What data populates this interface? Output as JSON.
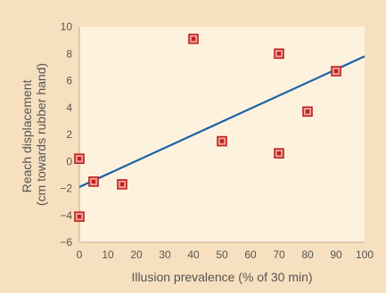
{
  "chart_data": {
    "type": "scatter",
    "title": "",
    "xlabel": "Illusion prevalence (% of 30 min)",
    "ylabel_lines": [
      "Reach displacement",
      "(cm towards rubber hand)"
    ],
    "xlim": [
      0,
      100
    ],
    "ylim": [
      -6,
      10
    ],
    "x_ticks": [
      0,
      10,
      20,
      30,
      40,
      50,
      60,
      70,
      80,
      90,
      100
    ],
    "y_ticks": [
      -6,
      -4,
      -2,
      0,
      2,
      4,
      6,
      8,
      10
    ],
    "grid": false,
    "series": [
      {
        "points": [
          {
            "x": 0,
            "y": 0.2
          },
          {
            "x": 0,
            "y": -4.1
          },
          {
            "x": 5,
            "y": -1.5
          },
          {
            "x": 15,
            "y": -1.7
          },
          {
            "x": 40,
            "y": 9.1
          },
          {
            "x": 50,
            "y": 1.5
          },
          {
            "x": 70,
            "y": 8.0
          },
          {
            "x": 70,
            "y": 0.6
          },
          {
            "x": 80,
            "y": 3.7
          },
          {
            "x": 90,
            "y": 6.7
          }
        ]
      }
    ],
    "trendline": {
      "x": [
        0,
        100
      ],
      "y": [
        -1.9,
        7.8
      ]
    },
    "colors": {
      "background": "#f7e0bf",
      "plot_area": "#fdf2de",
      "axis": "#c8a88a",
      "marker_fill": "#e8a39a",
      "marker_stroke": "#c41e1e",
      "trendline": "#1a63a6",
      "text": "#555555"
    }
  }
}
